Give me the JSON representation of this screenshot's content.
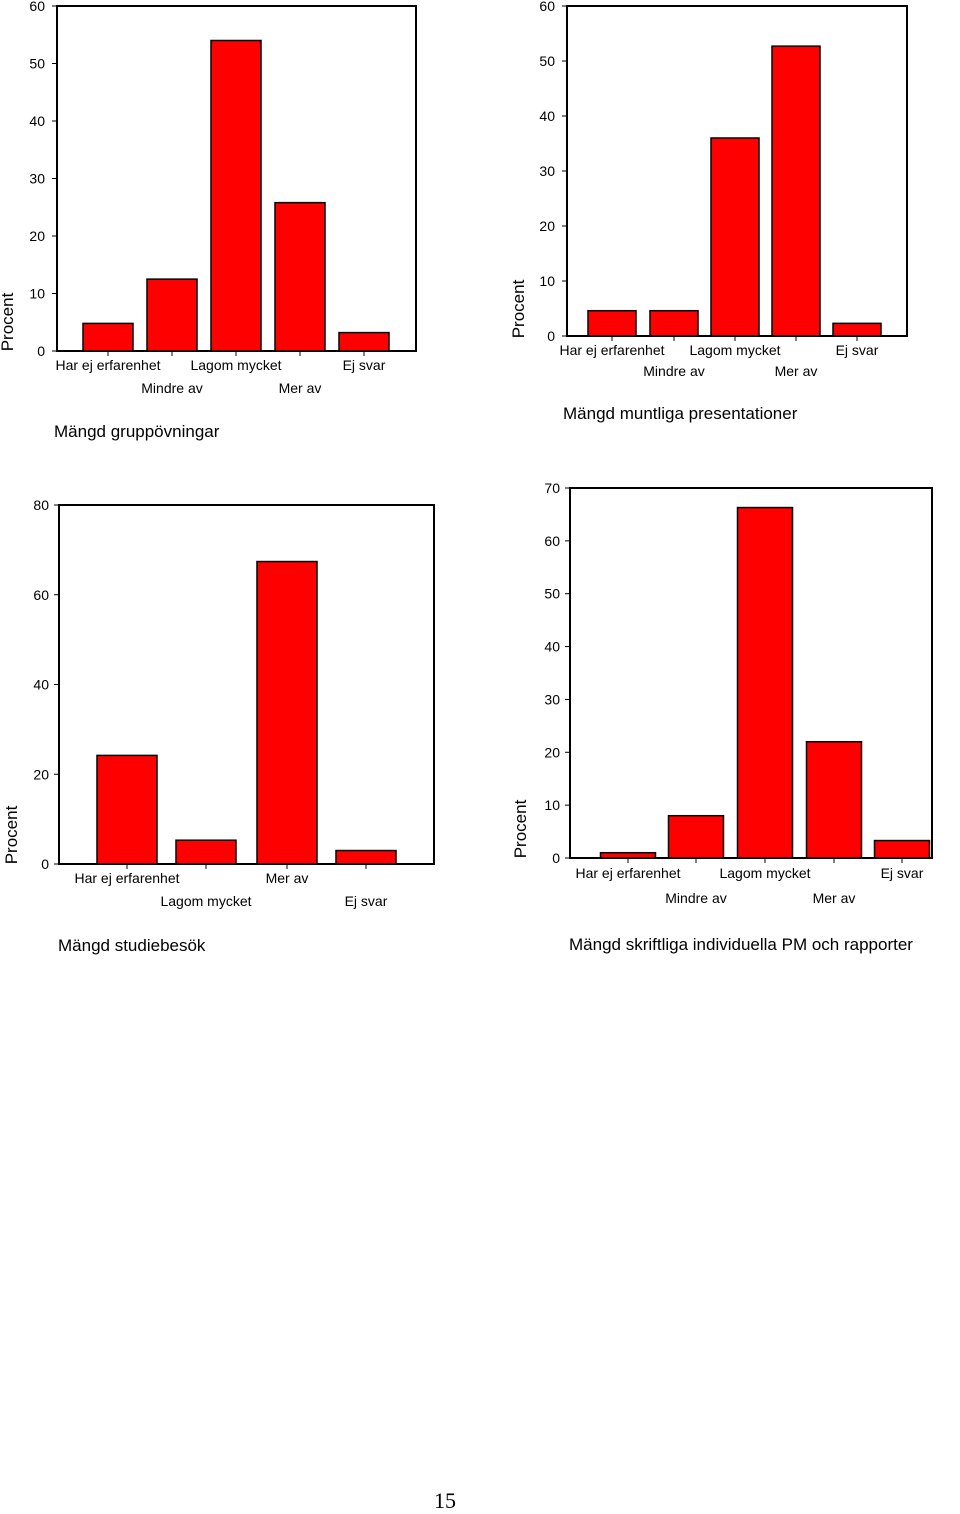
{
  "chart_data": [
    {
      "type": "bar",
      "title": "Mängd gruppövningar",
      "ylabel": "Procent",
      "categories": [
        "Har ej erfarenhet",
        "Mindre av",
        "Lagom mycket",
        "Mer av",
        "Ej svar"
      ],
      "values": [
        4.8,
        12.5,
        54,
        25.8,
        3.2
      ],
      "yticks": [
        0,
        10,
        20,
        30,
        40,
        50,
        60
      ],
      "ylim": [
        0,
        60
      ],
      "bar_color": "#ff0000",
      "grid": false,
      "legend": "none"
    },
    {
      "type": "bar",
      "title": "Mängd muntliga presentationer",
      "ylabel": "Procent",
      "categories": [
        "Har ej erfarenhet",
        "Mindre av",
        "Lagom mycket",
        "Mer av",
        "Ej svar"
      ],
      "values": [
        4.6,
        4.6,
        36,
        52.7,
        2.3
      ],
      "yticks": [
        0,
        10,
        20,
        30,
        40,
        50,
        60
      ],
      "ylim": [
        0,
        60
      ],
      "bar_color": "#ff0000",
      "grid": false,
      "legend": "none"
    },
    {
      "type": "bar",
      "title": "Mängd studiebesök",
      "ylabel": "Procent",
      "categories": [
        "Har ej erfarenhet",
        "Lagom mycket",
        "Mer av",
        "Ej svar"
      ],
      "values": [
        24.2,
        5.3,
        67.4,
        3.0
      ],
      "yticks": [
        0,
        20,
        40,
        60,
        80
      ],
      "ylim": [
        0,
        80
      ],
      "bar_color": "#ff0000",
      "grid": false,
      "legend": "none"
    },
    {
      "type": "bar",
      "title": "Mängd skriftliga individuella PM och rapporter",
      "ylabel": "Procent",
      "categories": [
        "Har ej erfarenhet",
        "Mindre av",
        "Lagom mycket",
        "Mer av",
        "Ej svar"
      ],
      "values": [
        1,
        8,
        66.3,
        22,
        3.3
      ],
      "yticks": [
        0,
        10,
        20,
        30,
        40,
        50,
        60,
        70
      ],
      "ylim": [
        0,
        70
      ],
      "bar_color": "#ff0000",
      "grid": false,
      "legend": "none"
    }
  ],
  "page_number": "15"
}
